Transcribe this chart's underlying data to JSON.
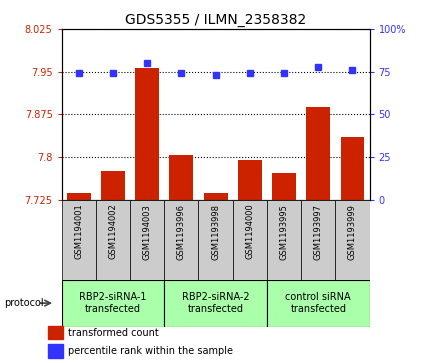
{
  "title": "GDS5355 / ILMN_2358382",
  "samples": [
    "GSM1194001",
    "GSM1194002",
    "GSM1194003",
    "GSM1193996",
    "GSM1193998",
    "GSM1194000",
    "GSM1193995",
    "GSM1193997",
    "GSM1193999"
  ],
  "red_values": [
    7.737,
    7.775,
    7.956,
    7.803,
    7.737,
    7.795,
    7.772,
    7.888,
    7.835
  ],
  "blue_values": [
    74,
    74,
    80,
    74,
    73,
    74,
    74,
    78,
    76
  ],
  "ylim_left": [
    7.725,
    8.025
  ],
  "ylim_right": [
    0,
    100
  ],
  "yticks_left": [
    7.725,
    7.8,
    7.875,
    7.95,
    8.025
  ],
  "yticks_right": [
    0,
    25,
    50,
    75,
    100
  ],
  "ytick_labels_left": [
    "7.725",
    "7.8",
    "7.875",
    "7.95",
    "8.025"
  ],
  "ytick_labels_right": [
    "0",
    "25",
    "50",
    "75",
    "100%"
  ],
  "left_color": "#cc2200",
  "right_color": "#3333ff",
  "bar_color": "#cc2200",
  "dot_color": "#3333ff",
  "groups": [
    {
      "label": "RBP2-siRNA-1\ntransfected",
      "start": 0,
      "end": 3
    },
    {
      "label": "RBP2-siRNA-2\ntransfected",
      "start": 3,
      "end": 6
    },
    {
      "label": "control siRNA\ntransfected",
      "start": 6,
      "end": 9
    }
  ],
  "group_bg_color": "#aaffaa",
  "sample_bg_color": "#cccccc",
  "legend_red_label": "transformed count",
  "legend_blue_label": "percentile rank within the sample",
  "protocol_label": "protocol",
  "fig_width": 4.4,
  "fig_height": 3.63,
  "dpi": 100
}
